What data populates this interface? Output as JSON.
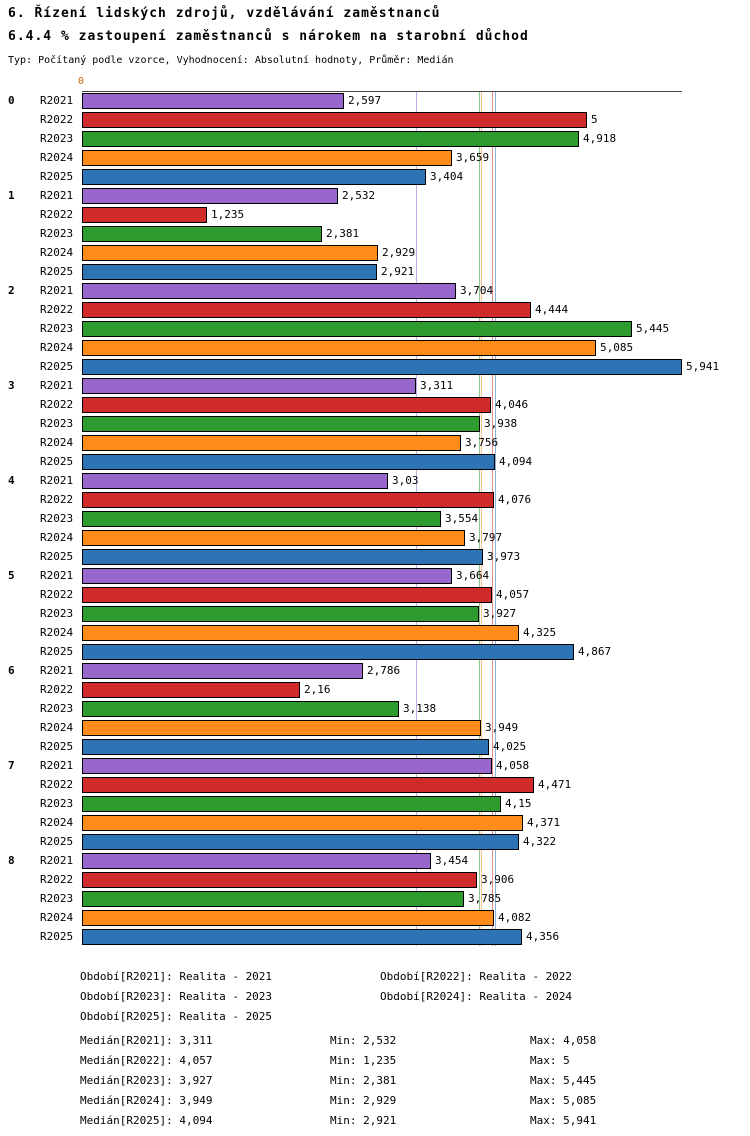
{
  "header": {
    "title": "6. Řízení lidských zdrojů, vzdělávání zaměstnanců",
    "subtitle": "6.4.4 % zastoupení zaměstnanců s nárokem na starobní důchod",
    "meta": "Typ: Počítaný podle vzorce, Vyhodnocení: Absolutní hodnoty, Průměr: Medián"
  },
  "chart_data": {
    "type": "bar",
    "orientation": "horizontal",
    "xlim": [
      0,
      6
    ],
    "axis_origin_label": "0",
    "grid": "median-marker-lines",
    "legend_position": "bottom",
    "categories": [
      "0",
      "1",
      "2",
      "3",
      "4",
      "5",
      "6",
      "7",
      "8"
    ],
    "series": [
      {
        "name": "R2021",
        "color": "#9966CC",
        "values": [
          2.597,
          2.532,
          3.704,
          3.311,
          3.03,
          3.664,
          2.786,
          4.058,
          3.454
        ],
        "value_labels": [
          "2,597",
          "2,532",
          "3,704",
          "3,311",
          "3,03",
          "3,664",
          "2,786",
          "4,058",
          "3,454"
        ],
        "median": 3.311
      },
      {
        "name": "R2022",
        "color": "#D02B2B",
        "values": [
          5,
          1.235,
          4.444,
          4.046,
          4.076,
          4.057,
          2.16,
          4.471,
          3.906
        ],
        "value_labels": [
          "5",
          "1,235",
          "4,444",
          "4,046",
          "4,076",
          "4,057",
          "2,16",
          "4,471",
          "3,906"
        ],
        "median": 4.057
      },
      {
        "name": "R2023",
        "color": "#2E9B2E",
        "values": [
          4.918,
          2.381,
          5.445,
          3.938,
          3.554,
          3.927,
          3.138,
          4.15,
          3.785
        ],
        "value_labels": [
          "4,918",
          "2,381",
          "5,445",
          "3,938",
          "3,554",
          "3,927",
          "3,138",
          "4,15",
          "3,785"
        ],
        "median": 3.927
      },
      {
        "name": "R2024",
        "color": "#FF8C1A",
        "values": [
          3.659,
          2.929,
          5.085,
          3.756,
          3.797,
          4.325,
          3.949,
          4.371,
          4.082
        ],
        "value_labels": [
          "3,659",
          "2,929",
          "5,085",
          "3,756",
          "3,797",
          "4,325",
          "3,949",
          "4,371",
          "4,082"
        ],
        "median": 3.949
      },
      {
        "name": "R2025",
        "color": "#2E74B5",
        "values": [
          3.404,
          2.921,
          5.941,
          4.094,
          3.973,
          4.867,
          4.025,
          4.322,
          4.356
        ],
        "value_labels": [
          "3,404",
          "2,921",
          "5,941",
          "4,094",
          "3,973",
          "4,867",
          "4,025",
          "4,322",
          "4,356"
        ],
        "median": 4.094
      }
    ]
  },
  "legend": [
    "Období[R2021]: Realita - 2021",
    "Období[R2022]: Realita - 2022",
    "Období[R2023]: Realita - 2023",
    "Období[R2024]: Realita - 2024",
    "Období[R2025]: Realita - 2025"
  ],
  "stats": [
    {
      "median": "Medián[R2021]: 3,311",
      "min": "Min: 2,532",
      "max": "Max: 4,058"
    },
    {
      "median": "Medián[R2022]: 4,057",
      "min": "Min: 1,235",
      "max": "Max: 5"
    },
    {
      "median": "Medián[R2023]: 3,927",
      "min": "Min: 2,381",
      "max": "Max: 5,445"
    },
    {
      "median": "Medián[R2024]: 3,949",
      "min": "Min: 2,929",
      "max": "Max: 5,085"
    },
    {
      "median": "Medián[R2025]: 4,094",
      "min": "Min: 2,921",
      "max": "Max: 5,941"
    }
  ]
}
